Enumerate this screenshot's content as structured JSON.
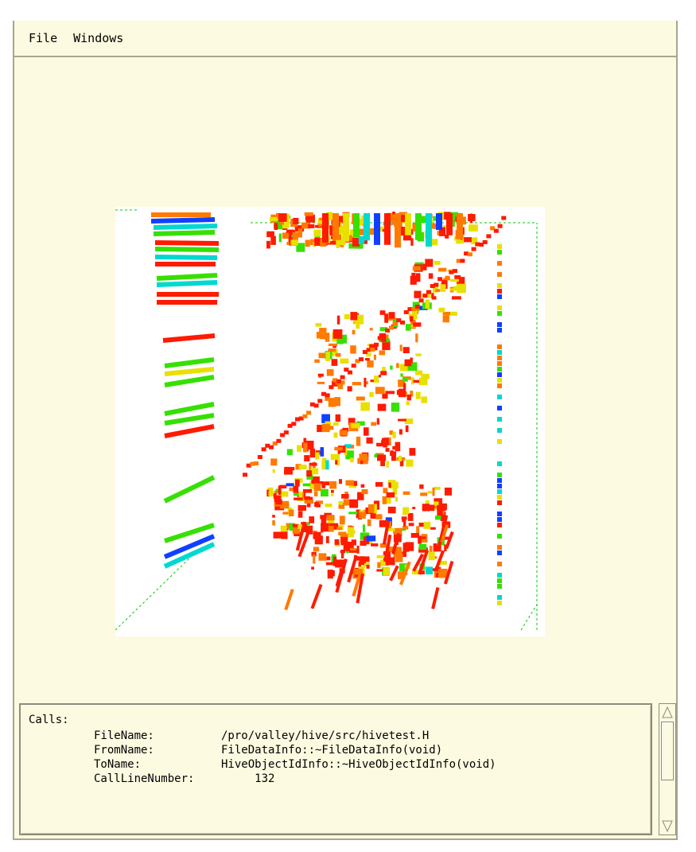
{
  "menubar": {
    "items": [
      {
        "label": "File"
      },
      {
        "label": "Windows"
      }
    ]
  },
  "visualization": {
    "colors": {
      "red": "#ff1a00",
      "orange": "#ff7a00",
      "yellow": "#e8e000",
      "green": "#36e000",
      "cyan": "#00d8d0",
      "blue": "#1040ff",
      "guide": "#00cc00"
    }
  },
  "info": {
    "title": "Calls:",
    "fields": [
      {
        "key": "FileName:",
        "value": "/pro/valley/hive/src/hivetest.H"
      },
      {
        "key": "FromName:",
        "value": "FileDataInfo::~FileDataInfo(void)"
      },
      {
        "key": "ToName:",
        "value": "HiveObjectIdInfo::~HiveObjectIdInfo(void)"
      },
      {
        "key": "CallLineNumber:",
        "value": "     132"
      }
    ]
  },
  "scrollbar": {
    "up_icon": "up-arrow-icon",
    "down_icon": "down-arrow-icon"
  }
}
